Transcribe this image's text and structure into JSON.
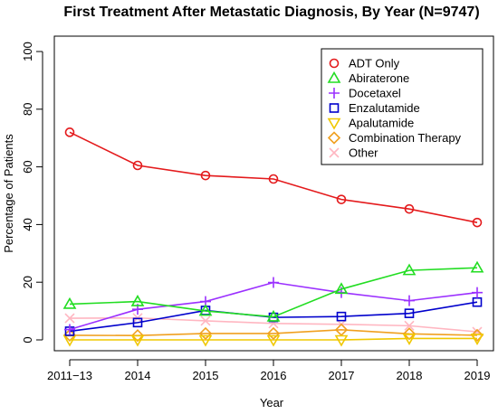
{
  "chart_data": {
    "type": "line",
    "title": "First Treatment After Metastatic Diagnosis, By Year (N=9747)",
    "xlabel": "Year",
    "ylabel": "Percentage of Patients",
    "categories": [
      "2011−13",
      "2014",
      "2015",
      "2016",
      "2017",
      "2018",
      "2019"
    ],
    "ylim": [
      0,
      100
    ],
    "yticks": [
      0,
      20,
      40,
      60,
      80,
      100
    ],
    "grid": false,
    "legend_position": "top-right",
    "series": [
      {
        "name": "ADT Only",
        "color": "#e41a1c",
        "marker": "circle",
        "values": [
          72.0,
          60.5,
          57.0,
          55.8,
          48.7,
          45.4,
          40.7
        ]
      },
      {
        "name": "Abiraterone",
        "color": "#22dd22",
        "marker": "triangle-up",
        "values": [
          12.4,
          13.3,
          10.0,
          8.0,
          17.6,
          24.1,
          25.0
        ]
      },
      {
        "name": "Docetaxel",
        "color": "#9b30ff",
        "marker": "plus",
        "values": [
          3.6,
          10.6,
          13.3,
          19.9,
          16.4,
          13.6,
          16.4
        ]
      },
      {
        "name": "Enzalutamide",
        "color": "#0000cc",
        "marker": "square",
        "values": [
          3.0,
          6.0,
          10.2,
          7.8,
          8.1,
          9.2,
          13.1
        ]
      },
      {
        "name": "Apalutamide",
        "color": "#f0c800",
        "marker": "triangle-down",
        "values": [
          0.0,
          0.0,
          0.0,
          0.0,
          0.0,
          0.5,
          0.5
        ]
      },
      {
        "name": "Combination Therapy",
        "color": "#f0a020",
        "marker": "diamond",
        "values": [
          1.6,
          1.5,
          2.2,
          2.2,
          3.5,
          2.1,
          1.6
        ]
      },
      {
        "name": "Other",
        "color": "#ffb6c1",
        "marker": "x",
        "values": [
          7.5,
          7.6,
          6.6,
          5.7,
          5.4,
          4.9,
          2.8
        ]
      }
    ]
  }
}
